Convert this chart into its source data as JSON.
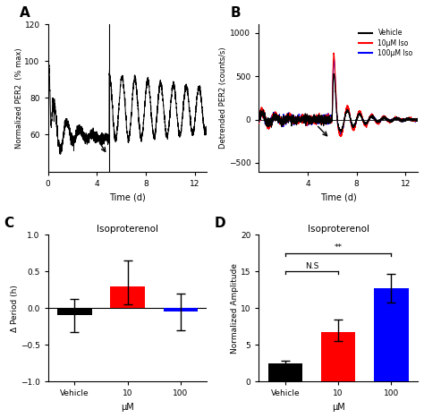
{
  "panel_A": {
    "ylabel": "Normalized PER2  (% max)",
    "xlabel": "Time (d)",
    "xlim": [
      0,
      13
    ],
    "ylim": [
      40,
      120
    ],
    "yticks": [
      60,
      80,
      100,
      120
    ],
    "xticks": [
      0,
      4,
      8,
      12
    ],
    "treatment_t": 5.0
  },
  "panel_B": {
    "ylabel": "Detrended PER2 (counts/s)",
    "xlabel": "Time (d)",
    "xlim": [
      0,
      13
    ],
    "ylim": [
      -600,
      1100
    ],
    "yticks": [
      -500,
      0,
      500,
      1000
    ],
    "xticks": [
      4,
      8,
      12
    ],
    "treatment_t": 6.0
  },
  "panel_C": {
    "subtitle": "Isoproterenol",
    "ylabel": "Δ Period (h)",
    "xlabel": "μM",
    "xlim": [
      -0.5,
      2.5
    ],
    "ylim": [
      -1.0,
      1.0
    ],
    "yticks": [
      -1.0,
      -0.5,
      0.0,
      0.5,
      1.0
    ],
    "xticks": [
      0,
      1,
      2
    ],
    "xticklabels": [
      "Vehicle",
      "10",
      "100"
    ],
    "bars": [
      {
        "x": 0,
        "height": -0.1,
        "color": "#000000",
        "yerr_low": 0.22,
        "yerr_high": 0.22
      },
      {
        "x": 1,
        "height": 0.3,
        "color": "#ff0000",
        "yerr_low": 0.25,
        "yerr_high": 0.35
      },
      {
        "x": 2,
        "height": -0.05,
        "color": "#0000ff",
        "yerr_low": 0.25,
        "yerr_high": 0.25
      }
    ]
  },
  "panel_D": {
    "subtitle": "Isoproterenol",
    "ylabel": "Normalized Amplitude",
    "xlabel": "μM",
    "xlim": [
      -0.5,
      2.5
    ],
    "ylim": [
      0,
      20
    ],
    "yticks": [
      0,
      5,
      10,
      15,
      20
    ],
    "xticks": [
      0,
      1,
      2
    ],
    "xticklabels": [
      "Vehicle",
      "10",
      "100"
    ],
    "bars": [
      {
        "x": 0,
        "height": 2.5,
        "color": "#000000",
        "yerr_low": 0.4,
        "yerr_high": 0.4
      },
      {
        "x": 1,
        "height": 6.7,
        "color": "#ff0000",
        "yerr_low": 1.2,
        "yerr_high": 1.8
      },
      {
        "x": 2,
        "height": 12.7,
        "color": "#0000ff",
        "yerr_low": 2.0,
        "yerr_high": 2.0
      }
    ],
    "sig_lines": [
      {
        "x1": 0,
        "x2": 2,
        "y": 17.5,
        "label": "**"
      },
      {
        "x1": 0,
        "x2": 1,
        "y": 15.0,
        "label": "N.S"
      }
    ]
  },
  "legend_labels": [
    "Vehicle",
    "10μM Iso",
    "100μM Iso"
  ],
  "legend_colors": [
    "#000000",
    "#ff0000",
    "#0000ff"
  ],
  "background_color": "#ffffff"
}
